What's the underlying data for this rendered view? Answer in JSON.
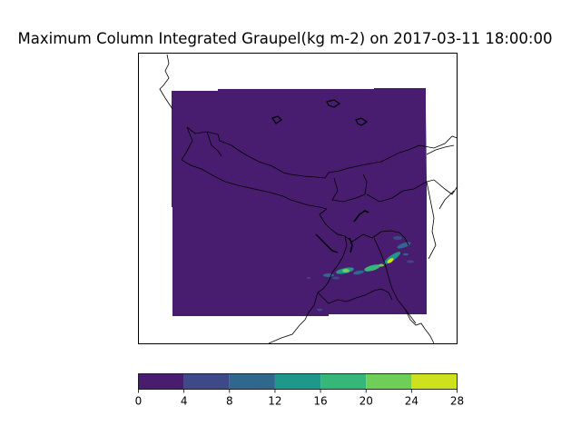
{
  "map": {
    "title": "Maximum Column Integrated Graupel(kg m-2) on 2017-03-11 18:00:00"
  },
  "colorbar": {
    "ticks": [
      "0",
      "4",
      "8",
      "12",
      "16",
      "20",
      "24",
      "28"
    ],
    "bins": [
      {
        "from": 0,
        "to": 4,
        "color": "#481d6f"
      },
      {
        "from": 4,
        "to": 8,
        "color": "#3e4989"
      },
      {
        "from": 8,
        "to": 12,
        "color": "#30678d"
      },
      {
        "from": 12,
        "to": 16,
        "color": "#1f978b"
      },
      {
        "from": 16,
        "to": 20,
        "color": "#35b779"
      },
      {
        "from": 20,
        "to": 24,
        "color": "#6ece58"
      },
      {
        "from": 24,
        "to": 28,
        "color": "#cde11d"
      }
    ]
  },
  "colors": {
    "field_background": "#481d6f",
    "coastline": "#000000"
  }
}
